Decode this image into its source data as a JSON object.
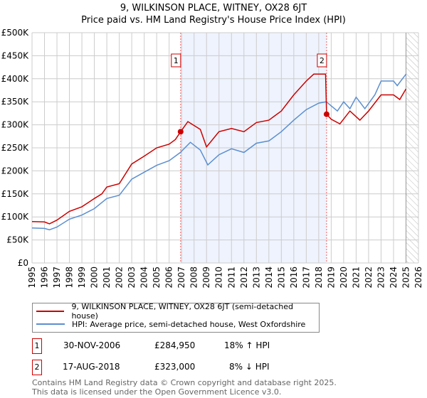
{
  "title": "9, WILKINSON PLACE, WITNEY, OX28 6JT",
  "subtitle": "Price paid vs. HM Land Registry's House Price Index (HPI)",
  "chart_data": {
    "type": "line",
    "title": "9, WILKINSON PLACE, WITNEY, OX28 6JT",
    "subtitle": "Price paid vs. HM Land Registry's House Price Index (HPI)",
    "xlim": [
      1995,
      2026
    ],
    "ylim": [
      0,
      500000
    ],
    "x_ticks": [
      "1995",
      "1996",
      "1997",
      "1998",
      "1999",
      "2000",
      "2001",
      "2002",
      "2003",
      "2004",
      "2005",
      "2006",
      "2007",
      "2008",
      "2009",
      "2010",
      "2011",
      "2012",
      "2013",
      "2014",
      "2015",
      "2016",
      "2017",
      "2018",
      "2019",
      "2020",
      "2021",
      "2022",
      "2023",
      "2024",
      "2025",
      "2026"
    ],
    "y_ticks": [
      {
        "v": 0,
        "label": "£0"
      },
      {
        "v": 50000,
        "label": "£50K"
      },
      {
        "v": 100000,
        "label": "£100K"
      },
      {
        "v": 150000,
        "label": "£150K"
      },
      {
        "v": 200000,
        "label": "£200K"
      },
      {
        "v": 250000,
        "label": "£250K"
      },
      {
        "v": 300000,
        "label": "£300K"
      },
      {
        "v": 350000,
        "label": "£350K"
      },
      {
        "v": 400000,
        "label": "£400K"
      },
      {
        "v": 450000,
        "label": "£450K"
      },
      {
        "v": 500000,
        "label": "£500K"
      }
    ],
    "grid": true,
    "shaded_range": [
      2006.92,
      2018.63
    ],
    "forecast_hatch_from": 2025.0,
    "series": [
      {
        "name": "9, WILKINSON PLACE, WITNEY, OX28 6JT (semi-detached house)",
        "color": "#cc0000",
        "x": [
          1995,
          1996,
          1996.4,
          1997,
          1998,
          1999,
          2000,
          2000.6,
          2001,
          2002,
          2003,
          2004,
          2005,
          2006,
          2006.5,
          2006.92,
          2007.5,
          2008.5,
          2009.0,
          2010,
          2011,
          2012,
          2013,
          2014,
          2015,
          2016,
          2017,
          2017.6,
          2018.55,
          2018.63,
          2019,
          2019.7,
          2020.5,
          2021.3,
          2022,
          2023,
          2024,
          2024.5,
          2025
        ],
        "y": [
          90000,
          89000,
          85000,
          93000,
          112000,
          122000,
          140000,
          150000,
          165000,
          172000,
          215000,
          232000,
          250000,
          258000,
          268000,
          284950,
          307000,
          290000,
          252000,
          285000,
          292000,
          285000,
          305000,
          310000,
          330000,
          365000,
          395000,
          410000,
          410000,
          323000,
          312000,
          302000,
          330000,
          310000,
          330000,
          365000,
          365000,
          355000,
          378000
        ]
      },
      {
        "name": "HPI: Average price, semi-detached house, West Oxfordshire",
        "color": "#5b8fd0",
        "x": [
          1995,
          1996,
          1996.4,
          1997,
          1998,
          1999,
          2000,
          2001,
          2002,
          2003,
          2004,
          2005,
          2006,
          2006.9,
          2007.7,
          2008.5,
          2009.1,
          2010,
          2011,
          2012,
          2013,
          2014,
          2015,
          2016,
          2017,
          2018,
          2018.6,
          2019.5,
          2020,
          2020.5,
          2021,
          2021.7,
          2022.5,
          2023,
          2024,
          2024.3,
          2025
        ],
        "y": [
          76000,
          75000,
          72000,
          78000,
          95000,
          104000,
          118000,
          140000,
          147000,
          182000,
          197000,
          212000,
          222000,
          240000,
          262000,
          245000,
          213000,
          235000,
          248000,
          240000,
          260000,
          265000,
          285000,
          310000,
          333000,
          347000,
          350000,
          330000,
          350000,
          335000,
          360000,
          335000,
          365000,
          395000,
          395000,
          385000,
          410000
        ]
      }
    ],
    "annotations": [
      {
        "label": "1",
        "x": 2006.92,
        "y": 284950
      },
      {
        "label": "2",
        "x": 2018.63,
        "y": 323000
      }
    ]
  },
  "legend": {
    "property": "9, WILKINSON PLACE, WITNEY, OX28 6JT (semi-detached house)",
    "hpi": "HPI: Average price, semi-detached house, West Oxfordshire"
  },
  "transactions": [
    {
      "num": "1",
      "date": "30-NOV-2006",
      "price": "£284,950",
      "hpi": "18% ↑ HPI"
    },
    {
      "num": "2",
      "date": "17-AUG-2018",
      "price": "£323,000",
      "hpi": "8% ↓ HPI"
    }
  ],
  "footer": {
    "line1": "Contains HM Land Registry data © Crown copyright and database right 2025.",
    "line2": "This data is licensed under the Open Government Licence v3.0."
  }
}
